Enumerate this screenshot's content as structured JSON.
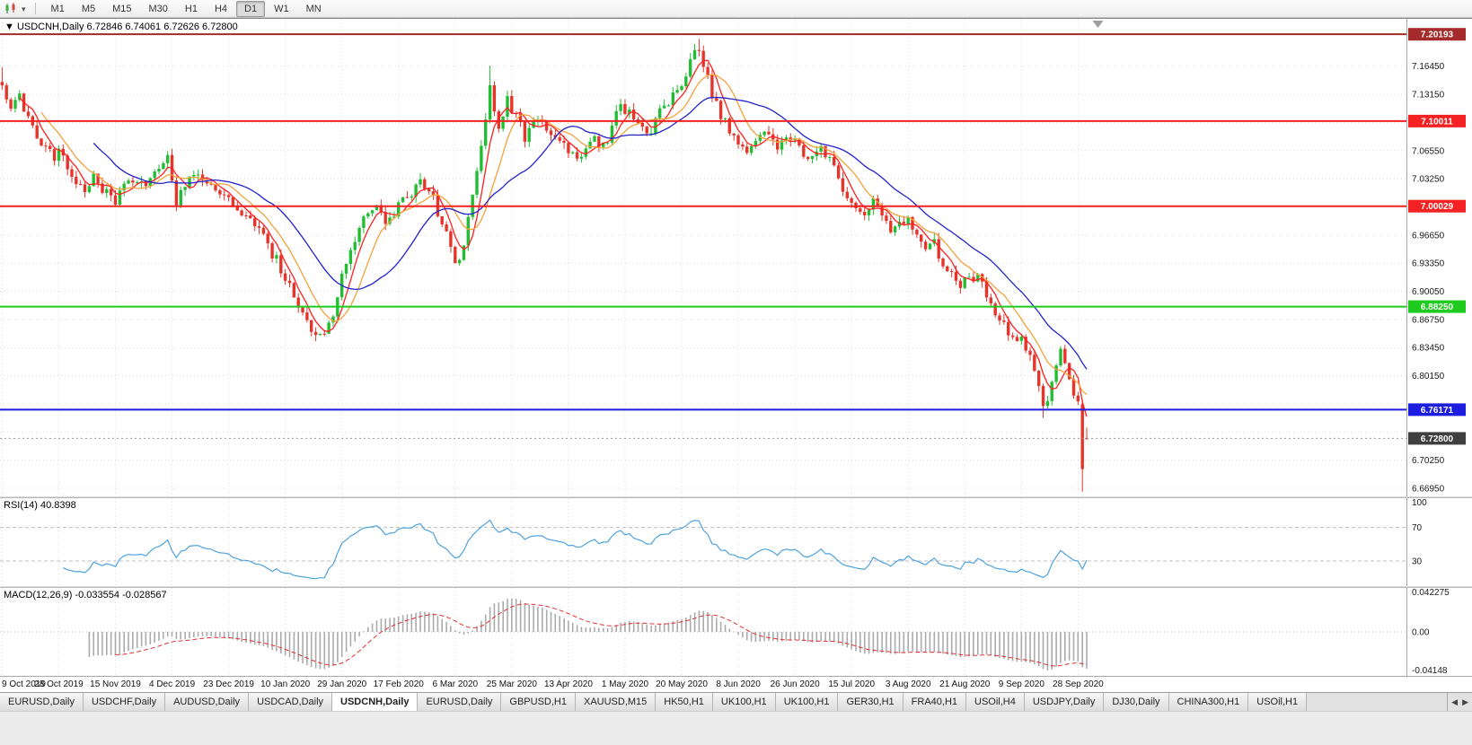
{
  "icons": {
    "title_marker": "▼",
    "caret_down": "▾",
    "scroll_left": "◀",
    "scroll_right": "▶"
  },
  "toolbar": {
    "timeframes": [
      "M1",
      "M5",
      "M15",
      "M30",
      "H1",
      "H4",
      "D1",
      "W1",
      "MN"
    ],
    "active_timeframe": "D1"
  },
  "chart_header": {
    "symbol": "USDCNH,Daily",
    "open": "6.72846",
    "high": "6.74061",
    "low": "6.72626",
    "close": "6.72800"
  },
  "price_axis": {
    "tick_labels": [
      "7.16450",
      "7.13150",
      "7.09850",
      "7.06550",
      "7.03250",
      "6.99950",
      "6.96650",
      "6.93350",
      "6.90050",
      "6.86750",
      "6.83450",
      "6.80150",
      "6.76850",
      "6.73550",
      "6.70250",
      "6.66950"
    ]
  },
  "levels": [
    {
      "price": 7.20193,
      "label": "7.20193",
      "color": "#a52a2a",
      "type": "resistance-line"
    },
    {
      "price": 7.10011,
      "label": "7.10011",
      "color": "#f42222",
      "type": "resistance-line"
    },
    {
      "price": 7.00029,
      "label": "7.00029",
      "color": "#f42222",
      "type": "resistance-line"
    },
    {
      "price": 6.8825,
      "label": "6.88250",
      "color": "#1ecb1e",
      "type": "support-line"
    },
    {
      "price": 6.76171,
      "label": "6.76171",
      "color": "#1d1de0",
      "type": "support-line"
    }
  ],
  "current_price": {
    "price": 6.728,
    "label": "6.72800",
    "tag_color": "#3f3f3f"
  },
  "rsi": {
    "name": "RSI(14)",
    "value": "40.8398",
    "color": "#4da3e0",
    "levels": [
      70,
      30
    ],
    "axis_labels": [
      "100",
      "70",
      "30"
    ]
  },
  "macd": {
    "name": "MACD(12,26,9)",
    "values": "-0.033554 -0.028567",
    "histogram_color": "#ababab",
    "signal_color": "#e23030",
    "axis_labels": [
      "0.042275",
      "0.00",
      "-0.04148"
    ]
  },
  "tabs": {
    "items": [
      "EURUSD,Daily",
      "USDCHF,Daily",
      "AUDUSD,Daily",
      "USDCAD,Daily",
      "USDCNH,Daily",
      "EURUSD,Daily",
      "GBPUSD,H1",
      "XAUUSD,M15",
      "HK50,H1",
      "UK100,H1",
      "UK100,H1",
      "GER30,H1",
      "FRA40,H1",
      "USOil,H4",
      "USDJPY,Daily",
      "DJ30,Daily",
      "CHINA300,H1",
      "USOil,H1"
    ],
    "active_index": 4
  },
  "chart_data": {
    "type": "candlestick",
    "symbol": "USDCNH",
    "timeframe": "Daily",
    "last_ohlc": {
      "open": 6.72846,
      "high": 6.74061,
      "low": 6.72626,
      "close": 6.728
    },
    "candle_count": 250,
    "price_range": [
      6.66,
      7.22
    ],
    "bull_color": "#22bd33",
    "bear_color": "#e7342a",
    "dates": [
      "9 Oct 2019",
      "28 Oct 2019",
      "15 Nov 2019",
      "4 Dec 2019",
      "23 Dec 2019",
      "10 Jan 2020",
      "29 Jan 2020",
      "17 Feb 2020",
      "6 Mar 2020",
      "25 Mar 2020",
      "13 Apr 2020",
      "1 May 2020",
      "20 May 2020",
      "8 Jun 2020",
      "26 Jun 2020",
      "15 Jul 2020",
      "3 Aug 2020",
      "21 Aug 2020",
      "9 Sep 2020",
      "28 Sep 2020"
    ],
    "close_anchors": [
      [
        0,
        7.142
      ],
      [
        2,
        7.12
      ],
      [
        4,
        7.128
      ],
      [
        6,
        7.1
      ],
      [
        8,
        7.082
      ],
      [
        10,
        7.07
      ],
      [
        12,
        7.058
      ],
      [
        13,
        7.062
      ],
      [
        15,
        7.045
      ],
      [
        17,
        7.03
      ],
      [
        19,
        7.022
      ],
      [
        21,
        7.035
      ],
      [
        23,
        7.018
      ],
      [
        26,
        7.008
      ],
      [
        28,
        7.022
      ],
      [
        30,
        7.032
      ],
      [
        33,
        7.028
      ],
      [
        36,
        7.042
      ],
      [
        38,
        7.063
      ],
      [
        40,
        7.0
      ],
      [
        42,
        7.028
      ],
      [
        44,
        7.035
      ],
      [
        46,
        7.03
      ],
      [
        48,
        7.022
      ],
      [
        50,
        7.012
      ],
      [
        52,
        7.008
      ],
      [
        54,
        6.998
      ],
      [
        56,
        6.992
      ],
      [
        58,
        6.975
      ],
      [
        60,
        6.962
      ],
      [
        62,
        6.945
      ],
      [
        64,
        6.928
      ],
      [
        66,
        6.905
      ],
      [
        68,
        6.882
      ],
      [
        70,
        6.862
      ],
      [
        72,
        6.846
      ],
      [
        74,
        6.855
      ],
      [
        76,
        6.872
      ],
      [
        78,
        6.92
      ],
      [
        80,
        6.955
      ],
      [
        82,
        6.972
      ],
      [
        84,
        6.992
      ],
      [
        86,
        7.0
      ],
      [
        88,
        6.982
      ],
      [
        90,
        6.992
      ],
      [
        92,
        7.005
      ],
      [
        94,
        7.018
      ],
      [
        96,
        7.032
      ],
      [
        98,
        7.022
      ],
      [
        100,
        6.995
      ],
      [
        102,
        6.968
      ],
      [
        104,
        6.932
      ],
      [
        106,
        6.955
      ],
      [
        108,
        7.012
      ],
      [
        110,
        7.075
      ],
      [
        112,
        7.14
      ],
      [
        114,
        7.095
      ],
      [
        116,
        7.125
      ],
      [
        118,
        7.105
      ],
      [
        120,
        7.082
      ],
      [
        122,
        7.098
      ],
      [
        124,
        7.095
      ],
      [
        126,
        7.088
      ],
      [
        128,
        7.078
      ],
      [
        130,
        7.068
      ],
      [
        132,
        7.055
      ],
      [
        134,
        7.062
      ],
      [
        136,
        7.078
      ],
      [
        138,
        7.07
      ],
      [
        140,
        7.092
      ],
      [
        142,
        7.12
      ],
      [
        144,
        7.108
      ],
      [
        146,
        7.095
      ],
      [
        148,
        7.082
      ],
      [
        150,
        7.1
      ],
      [
        152,
        7.118
      ],
      [
        154,
        7.128
      ],
      [
        156,
        7.142
      ],
      [
        158,
        7.172
      ],
      [
        160,
        7.185
      ],
      [
        162,
        7.148
      ],
      [
        164,
        7.118
      ],
      [
        166,
        7.098
      ],
      [
        168,
        7.082
      ],
      [
        170,
        7.072
      ],
      [
        172,
        7.065
      ],
      [
        174,
        7.082
      ],
      [
        176,
        7.088
      ],
      [
        178,
        7.072
      ],
      [
        180,
        7.075
      ],
      [
        182,
        7.08
      ],
      [
        184,
        7.062
      ],
      [
        186,
        7.055
      ],
      [
        188,
        7.068
      ],
      [
        190,
        7.052
      ],
      [
        192,
        7.032
      ],
      [
        194,
        7.008
      ],
      [
        196,
        6.998
      ],
      [
        198,
        6.992
      ],
      [
        200,
        7.005
      ],
      [
        202,
        6.988
      ],
      [
        204,
        6.972
      ],
      [
        206,
        6.978
      ],
      [
        208,
        6.982
      ],
      [
        210,
        6.962
      ],
      [
        212,
        6.948
      ],
      [
        214,
        6.958
      ],
      [
        216,
        6.932
      ],
      [
        218,
        6.918
      ],
      [
        220,
        6.908
      ],
      [
        222,
        6.915
      ],
      [
        224,
        6.92
      ],
      [
        226,
        6.898
      ],
      [
        228,
        6.872
      ],
      [
        230,
        6.858
      ],
      [
        232,
        6.848
      ],
      [
        234,
        6.842
      ],
      [
        236,
        6.832
      ],
      [
        238,
        6.788
      ],
      [
        239,
        6.762
      ],
      [
        240,
        6.772
      ],
      [
        241,
        6.79
      ],
      [
        242,
        6.81
      ],
      [
        243,
        6.828
      ],
      [
        244,
        6.82
      ],
      [
        245,
        6.8
      ],
      [
        246,
        6.782
      ],
      [
        247,
        6.768
      ],
      [
        248,
        6.692
      ],
      [
        249,
        6.728
      ]
    ],
    "overrides": {
      "0": {
        "h": 7.163
      },
      "72": {
        "l": 6.842
      },
      "112": {
        "h": 7.165
      },
      "160": {
        "h": 7.1965
      },
      "239": {
        "l": 6.752
      },
      "248": {
        "o": 6.768,
        "c": 6.692,
        "l": 6.6655
      },
      "249": {
        "o": 6.72846,
        "h": 6.74061,
        "l": 6.72626,
        "c": 6.728
      }
    },
    "moving_averages": [
      {
        "period": 5,
        "color": "#ff1f1f"
      },
      {
        "period": 10,
        "color": "#f2a33c"
      },
      {
        "period": 22,
        "color": "#2222cc"
      }
    ],
    "horizontal_levels": [
      7.20193,
      7.10011,
      7.00029,
      6.8825,
      6.76171
    ],
    "indicators": [
      {
        "name": "RSI",
        "period": 14,
        "current": 40.8398,
        "scale": [
          0,
          100
        ],
        "marked_levels": [
          70,
          30
        ]
      },
      {
        "name": "MACD",
        "params": [
          12,
          26,
          9
        ],
        "current": [
          -0.033554,
          -0.028567
        ],
        "scale": [
          -0.04148,
          0.042275
        ]
      }
    ]
  }
}
